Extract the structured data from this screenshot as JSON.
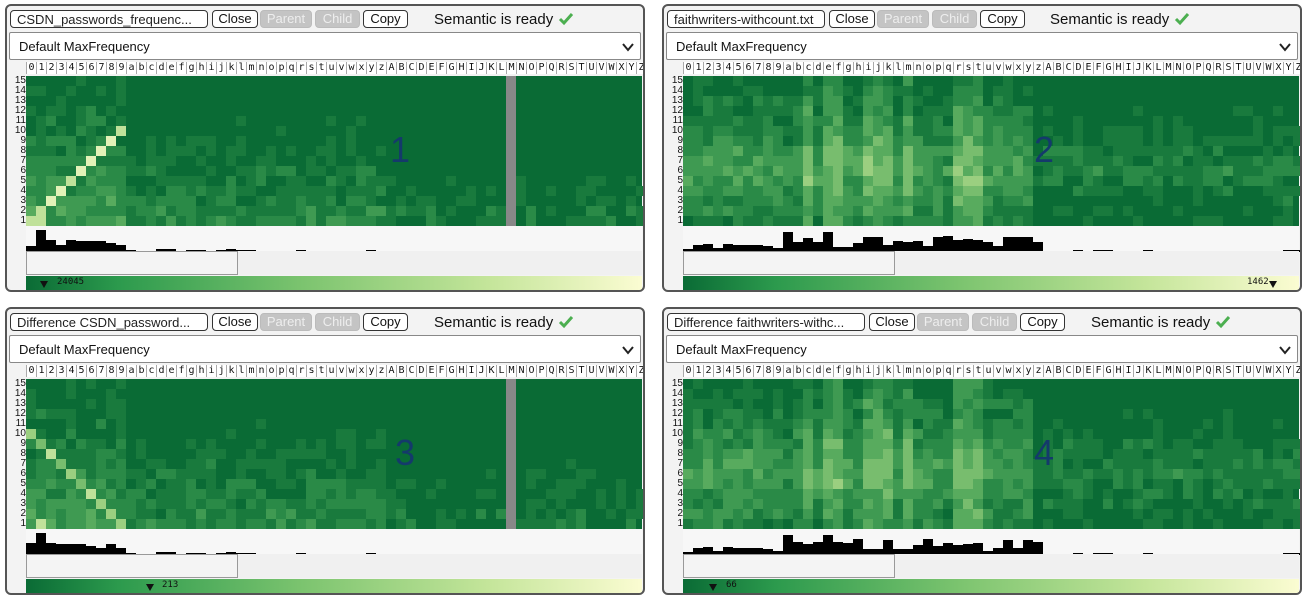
{
  "panels": [
    {
      "file": "CSDN_passwords_frequenc...",
      "close": "Close",
      "parent": "Parent",
      "child": "Child",
      "copy": "Copy",
      "status": "Semantic is ready",
      "select": "Default MaxFrequency",
      "number": "1",
      "scale": "24045",
      "accent": "#2e7d32"
    },
    {
      "file": "faithwriters-withcount.txt",
      "close": "Close",
      "parent": "Parent",
      "child": "Child",
      "copy": "Copy",
      "status": "Semantic is ready",
      "select": "Default MaxFrequency",
      "number": "2",
      "scale": "1462",
      "accent": "#2e7d32"
    },
    {
      "file": "Difference CSDN_password...",
      "close": "Close",
      "parent": "Parent",
      "child": "Child",
      "copy": "Copy",
      "status": "Semantic is ready",
      "select": "Default MaxFrequency",
      "number": "3",
      "scale": "213",
      "accent": "#2e7d32"
    },
    {
      "file": "Difference faithwriters-withc...",
      "close": "Close",
      "parent": "Parent",
      "child": "Child",
      "copy": "Copy",
      "status": "Semantic is ready",
      "select": "Default MaxFrequency",
      "number": "4",
      "scale": "66",
      "accent": "#2e7d32"
    }
  ],
  "columns": "0123456789abcdefghijklmnopqrstuvwxyzABCDEFGHIJKLMNOPQRSTUVWXYZ",
  "rows": [
    "15",
    "14",
    "13",
    "12",
    "11",
    "10",
    "9",
    "8",
    "7",
    "6",
    "5",
    "4",
    "3",
    "2",
    "1"
  ],
  "icons": {
    "check": "checkmark-icon",
    "select": "chevron-down-icon",
    "marker": "triangle-down-icon"
  }
}
